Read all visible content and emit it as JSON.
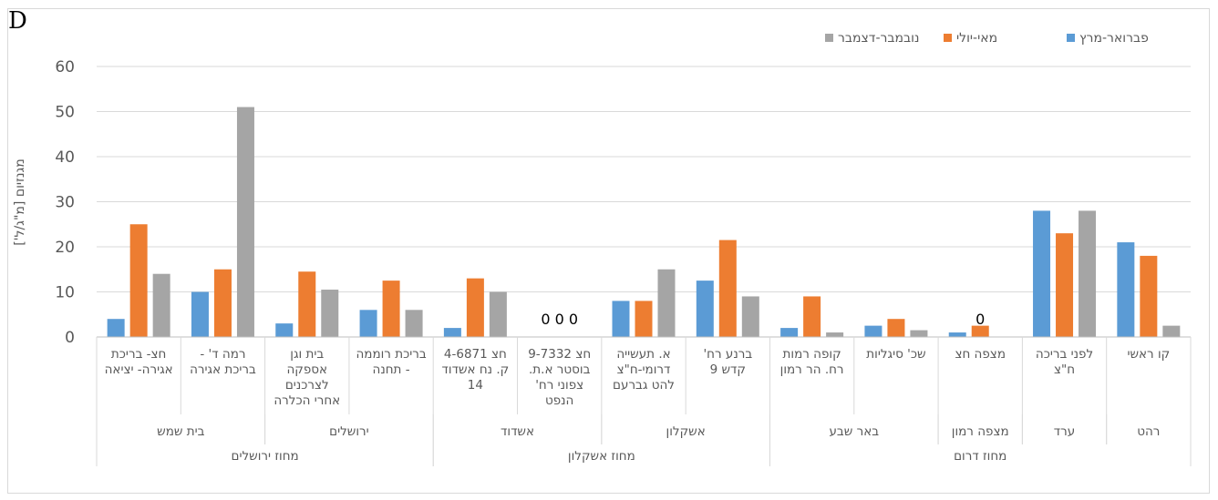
{
  "panel_label": "D",
  "chart_data": {
    "type": "bar",
    "ylabel": "מגנזיום [מ\"ג/ל']",
    "ylim": [
      0,
      60
    ],
    "yticks": [
      0,
      10,
      20,
      30,
      40,
      50,
      60
    ],
    "grid": true,
    "legend_position": "top-right",
    "colors": {
      "series": [
        "#5b9bd5",
        "#ed7d31",
        "#a5a5a5"
      ],
      "grid": "#d9d9d9",
      "axis": "#bfbfbf",
      "text": "#595959"
    },
    "series": [
      {
        "name": "פברואר-מרץ",
        "values": [
          21,
          28,
          1,
          2.5,
          2,
          12.5,
          8,
          0,
          2,
          6,
          3,
          10,
          4
        ]
      },
      {
        "name": "מאי-יולי",
        "values": [
          18,
          23,
          2.5,
          4,
          9,
          21.5,
          8,
          0,
          13,
          12.5,
          14.5,
          15,
          25
        ]
      },
      {
        "name": "נובמבר-דצמבר",
        "values": [
          2.5,
          28,
          0,
          1.5,
          1,
          9,
          15,
          0,
          10,
          6,
          10.5,
          51,
          14
        ]
      }
    ],
    "categories": [
      [
        "קו ראשי"
      ],
      [
        "לפני בריכה",
        "ח\"צ"
      ],
      [
        "מצפה חצ"
      ],
      [
        "שכ' סיגליות"
      ],
      [
        "קופה רמות",
        "רח. הר רמון"
      ],
      [
        "ברנע רח'",
        "קדש 9"
      ],
      [
        "א. תעשייה",
        "דרומי-ח\"צ",
        "להט גברעם"
      ],
      [
        "חצ 9-7332",
        "בוסטר א.ת.",
        "צפוני רח'",
        "הנפט"
      ],
      [
        "חצ 4-6871",
        "ק. נח אשדוד",
        "14"
      ],
      [
        "בריכת רוממה",
        "- תחנה"
      ],
      [
        "בית וגן",
        "אספקה",
        "לצרכנים",
        "אחרי הכלרה"
      ],
      [
        "רמה ד' -",
        "בריכת אגירה"
      ],
      [
        "חצ- בריכת",
        "אגירה- יציאה"
      ]
    ],
    "annotations": [
      {
        "category_index": 2,
        "text": "0"
      },
      {
        "category_index": 7,
        "text": "0 0 0"
      }
    ],
    "cities": [
      {
        "name": "רהט",
        "span": [
          0,
          0
        ]
      },
      {
        "name": "ערד",
        "span": [
          1,
          1
        ]
      },
      {
        "name": "מצפה רמון",
        "span": [
          2,
          2
        ]
      },
      {
        "name": "באר שבע",
        "span": [
          3,
          4
        ]
      },
      {
        "name": "אשקלון",
        "span": [
          5,
          6
        ]
      },
      {
        "name": "אשדוד",
        "span": [
          7,
          8
        ]
      },
      {
        "name": "ירושלים",
        "span": [
          9,
          10
        ]
      },
      {
        "name": "בית שמש",
        "span": [
          11,
          12
        ]
      }
    ],
    "districts": [
      {
        "name": "מחוז דרום",
        "span": [
          0,
          4
        ]
      },
      {
        "name": "מחוז אשקלון",
        "span": [
          5,
          8
        ]
      },
      {
        "name": "מחוז ירושלים",
        "span": [
          9,
          12
        ]
      }
    ]
  }
}
